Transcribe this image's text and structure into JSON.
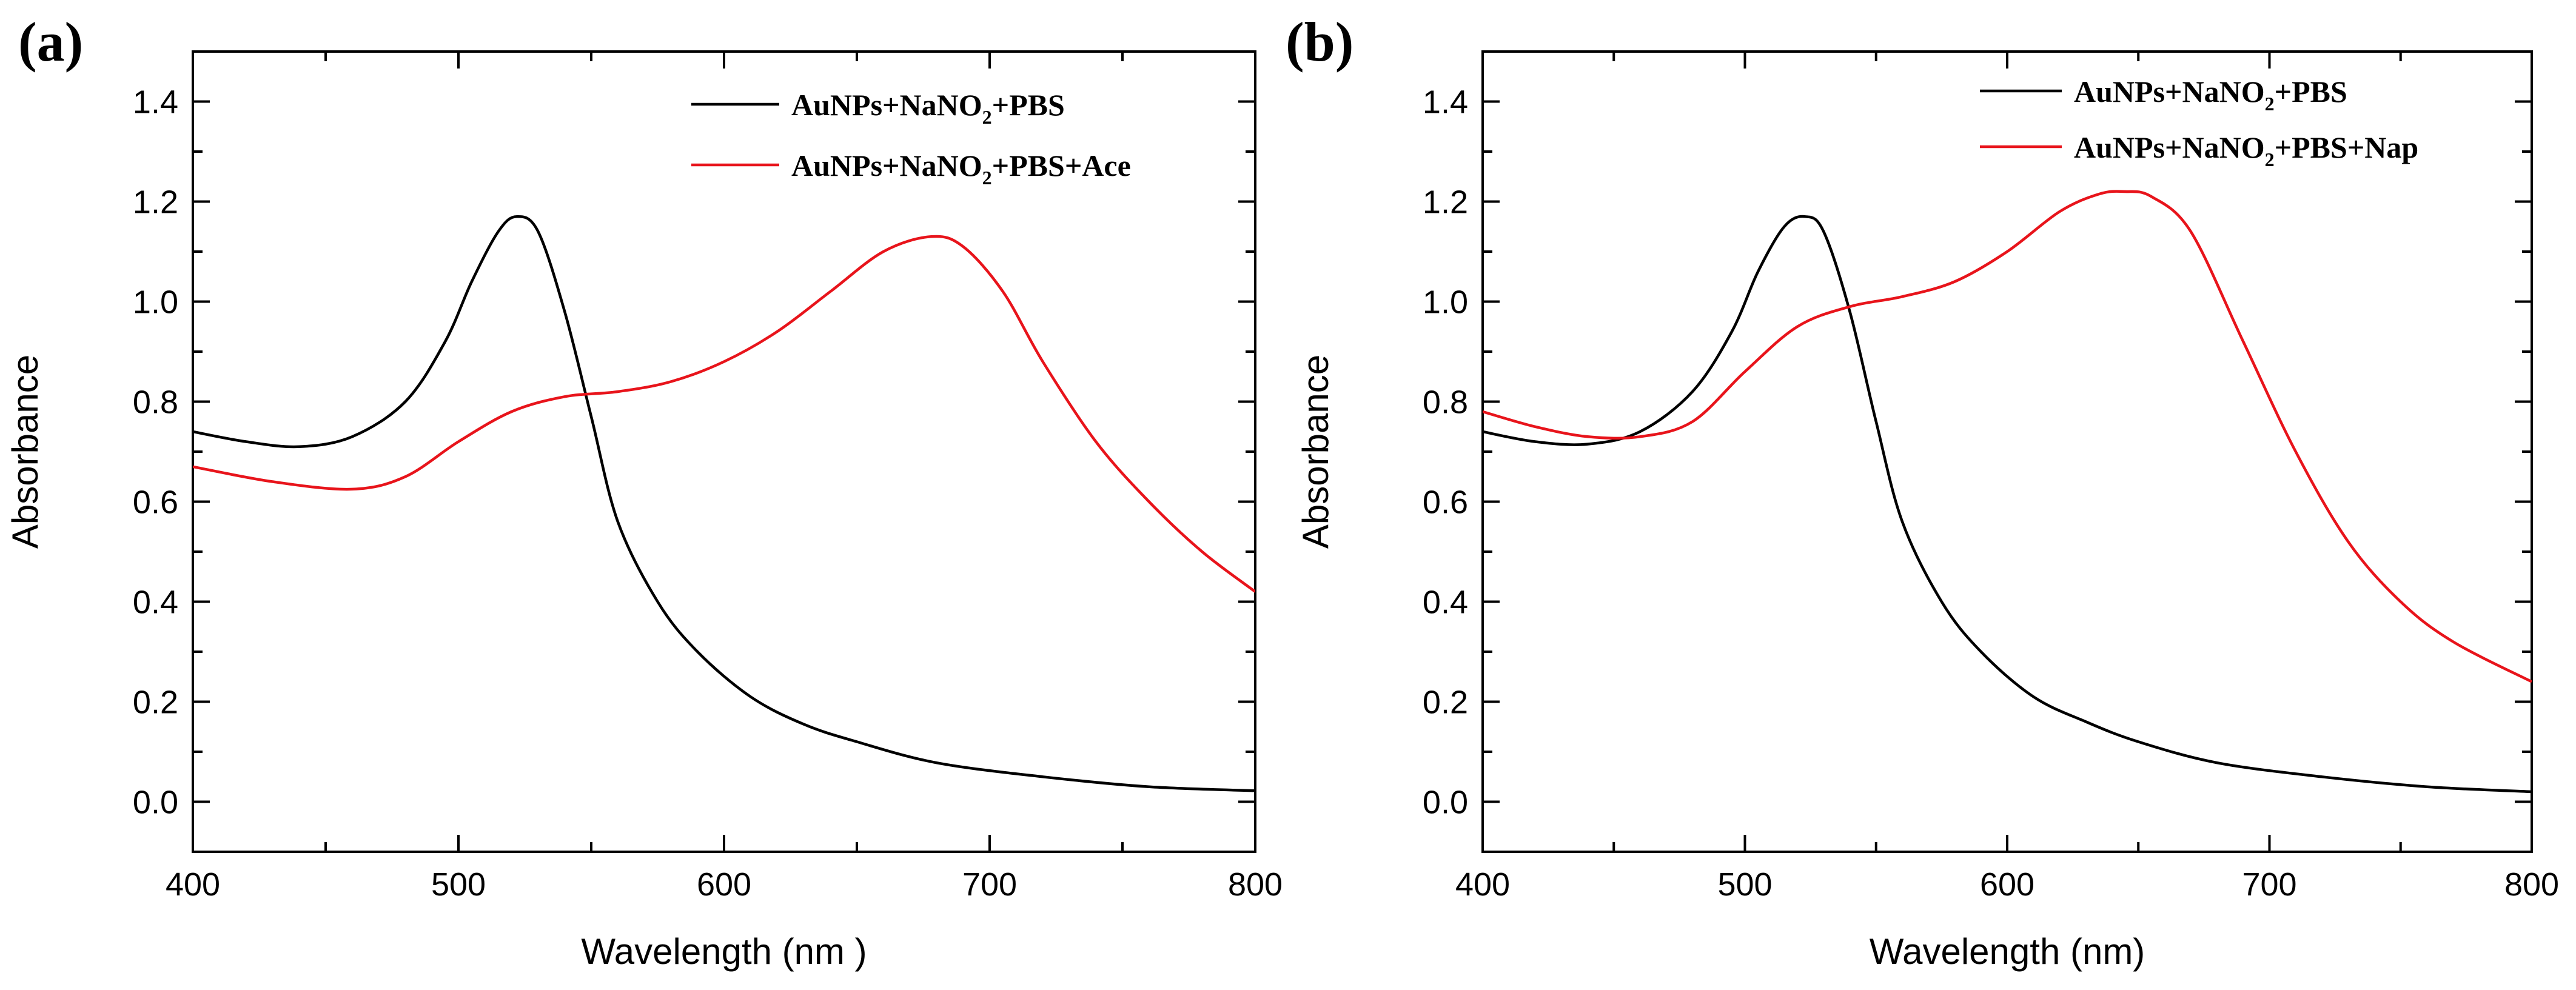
{
  "chart_data": [
    {
      "panel_label": "(a)",
      "panel_letter": "a",
      "type": "line",
      "title": "",
      "xlabel": "Wavelength (nm )",
      "ylabel": "Absorbance",
      "xlim": [
        400,
        800
      ],
      "ylim": [
        -0.1,
        1.5
      ],
      "xticks": [
        400,
        500,
        600,
        700,
        800
      ],
      "xtick_labels": [
        "400",
        "500",
        "600",
        "700",
        "800"
      ],
      "yticks": [
        0.0,
        0.2,
        0.4,
        0.6,
        0.8,
        1.0,
        1.2,
        1.4
      ],
      "ytick_labels": [
        "0.0",
        "0.2",
        "0.4",
        "0.6",
        "0.8",
        "1.0",
        "1.2",
        "1.4"
      ],
      "grid": false,
      "legend_position": "top-right",
      "series": [
        {
          "name": "AuNPs+NaNO2+PBS",
          "legend": {
            "base": "AuNPs+NaNO",
            "sub": "2",
            "rest": "+PBS"
          },
          "color": "#000000",
          "x": [
            400,
            420,
            440,
            460,
            480,
            495,
            505,
            515,
            522,
            530,
            540,
            550,
            560,
            575,
            590,
            610,
            630,
            650,
            680,
            720,
            760,
            800
          ],
          "y": [
            0.74,
            0.72,
            0.71,
            0.73,
            0.8,
            0.92,
            1.04,
            1.14,
            1.17,
            1.14,
            0.98,
            0.77,
            0.56,
            0.4,
            0.3,
            0.21,
            0.155,
            0.12,
            0.078,
            0.05,
            0.03,
            0.022
          ]
        },
        {
          "name": "AuNPs+NaNO2+PBS+Ace",
          "legend": {
            "base": "AuNPs+NaNO",
            "sub": "2",
            "rest": "+PBS+Ace"
          },
          "color": "#e8141b",
          "x": [
            400,
            430,
            460,
            480,
            500,
            520,
            540,
            560,
            580,
            600,
            620,
            640,
            660,
            678,
            690,
            705,
            720,
            740,
            760,
            780,
            800
          ],
          "y": [
            0.67,
            0.64,
            0.625,
            0.65,
            0.72,
            0.78,
            0.81,
            0.82,
            0.84,
            0.88,
            0.94,
            1.02,
            1.1,
            1.13,
            1.11,
            1.02,
            0.88,
            0.72,
            0.6,
            0.5,
            0.42
          ]
        }
      ]
    },
    {
      "panel_label": "(b)",
      "panel_letter": "b",
      "type": "line",
      "title": "",
      "xlabel": "Wavelength (nm)",
      "ylabel": "Absorbance",
      "xlim": [
        400,
        800
      ],
      "ylim": [
        -0.1,
        1.5
      ],
      "xticks": [
        400,
        500,
        600,
        700,
        800
      ],
      "xtick_labels": [
        "400",
        "500",
        "600",
        "700",
        "800"
      ],
      "yticks": [
        0.0,
        0.2,
        0.4,
        0.6,
        0.8,
        1.0,
        1.2,
        1.4
      ],
      "ytick_labels": [
        "0.0",
        "0.2",
        "0.4",
        "0.6",
        "0.8",
        "1.0",
        "1.2",
        "1.4"
      ],
      "grid": false,
      "legend_position": "top-right",
      "series": [
        {
          "name": "AuNPs+NaNO2+PBS",
          "legend": {
            "base": "AuNPs+NaNO",
            "sub": "2",
            "rest": "+PBS"
          },
          "color": "#000000",
          "x": [
            400,
            420,
            440,
            460,
            480,
            495,
            505,
            515,
            523,
            530,
            540,
            550,
            560,
            575,
            590,
            610,
            630,
            650,
            680,
            720,
            760,
            800
          ],
          "y": [
            0.74,
            0.72,
            0.715,
            0.74,
            0.82,
            0.94,
            1.06,
            1.15,
            1.17,
            1.14,
            0.98,
            0.76,
            0.56,
            0.4,
            0.3,
            0.21,
            0.16,
            0.12,
            0.078,
            0.05,
            0.03,
            0.02
          ]
        },
        {
          "name": "AuNPs+NaNO2+PBS+Nap",
          "legend": {
            "base": "AuNPs+NaNO",
            "sub": "2",
            "rest": "+PBS+Nap"
          },
          "color": "#e8141b",
          "x": [
            400,
            420,
            440,
            460,
            480,
            500,
            520,
            540,
            560,
            580,
            600,
            620,
            635,
            645,
            655,
            670,
            690,
            710,
            730,
            750,
            770,
            800
          ],
          "y": [
            0.78,
            0.75,
            0.73,
            0.73,
            0.76,
            0.86,
            0.95,
            0.99,
            1.01,
            1.04,
            1.1,
            1.18,
            1.215,
            1.22,
            1.21,
            1.14,
            0.92,
            0.7,
            0.52,
            0.4,
            0.32,
            0.24
          ]
        }
      ]
    }
  ]
}
